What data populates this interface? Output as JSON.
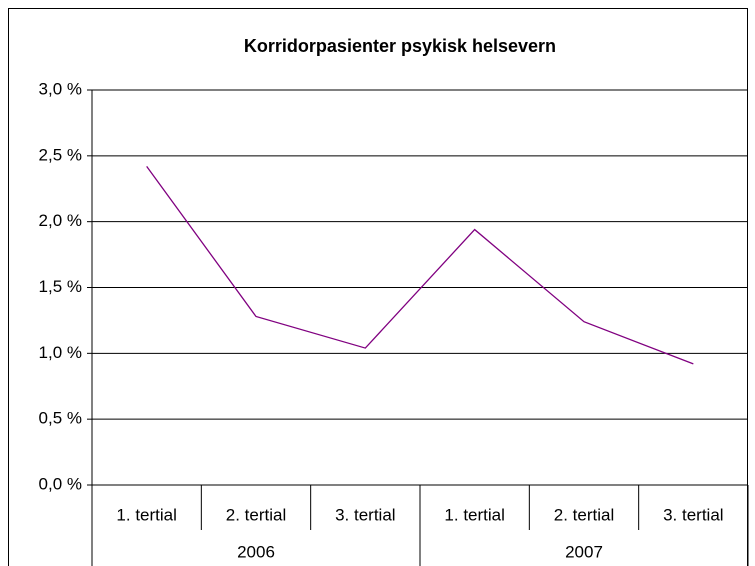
{
  "chart_data": {
    "type": "line",
    "title": "Korridorpasienter psykisk helsevern",
    "categories": [
      "1. tertial",
      "2. tertial",
      "3. tertial",
      "1. tertial",
      "2. tertial",
      "3. tertial"
    ],
    "groups": [
      "2006",
      "2007"
    ],
    "series": [
      {
        "name": "Korridorpasienter",
        "color": "#800080",
        "values": [
          2.42,
          1.28,
          1.04,
          1.94,
          1.24,
          0.92
        ]
      }
    ],
    "ylim": [
      0,
      3
    ],
    "yticks": [
      {
        "value": 0,
        "label": "0,0 %"
      },
      {
        "value": 0.5,
        "label": "0,5 %"
      },
      {
        "value": 1,
        "label": "1,0 %"
      },
      {
        "value": 1.5,
        "label": "1,5 %"
      },
      {
        "value": 2,
        "label": "2,0 %"
      },
      {
        "value": 2.5,
        "label": "2,5 %"
      },
      {
        "value": 3,
        "label": "3,0 %"
      }
    ],
    "grid": true
  }
}
